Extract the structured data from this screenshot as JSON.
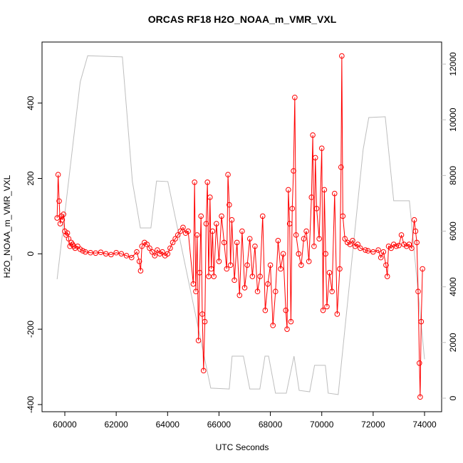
{
  "chart_data": {
    "type": "line",
    "title": "ORCAS RF18 H2O_NOAA_m_VMR_VXL",
    "x_label": "UTC Seconds",
    "y_label": "H2O_NOAA_m_VMR_VXL",
    "xlim": [
      59113,
      74665
    ],
    "ylim": [
      -419,
      562
    ],
    "y2lim": [
      -486,
      12793
    ],
    "xticks": [
      60000,
      62000,
      64000,
      66000,
      68000,
      70000,
      72000,
      74000
    ],
    "yticks": [
      -400,
      -200,
      0,
      200,
      400
    ],
    "y2ticks": [
      0,
      2000,
      4000,
      6000,
      8000,
      10000,
      12000
    ],
    "series": [
      {
        "color": "#ff0000",
        "markers": true,
        "x": [
          59700,
          59740,
          59780,
          59820,
          59860,
          59900,
          59950,
          60000,
          60050,
          60100,
          60150,
          60200,
          60250,
          60300,
          60350,
          60400,
          60500,
          60600,
          60700,
          60800,
          61000,
          61200,
          61400,
          61600,
          61800,
          62000,
          62200,
          62400,
          62600,
          62800,
          62900,
          62950,
          63000,
          63100,
          63200,
          63300,
          63400,
          63500,
          63600,
          63700,
          63800,
          63900,
          64000,
          64100,
          64200,
          64300,
          64400,
          64500,
          64600,
          64700,
          64800,
          65000,
          65050,
          65100,
          65150,
          65200,
          65250,
          65300,
          65350,
          65400,
          65450,
          65500,
          65550,
          65600,
          65650,
          65700,
          65750,
          65800,
          65900,
          66000,
          66100,
          66200,
          66300,
          66350,
          66400,
          66450,
          66500,
          66600,
          66700,
          66800,
          66900,
          67000,
          67100,
          67200,
          67300,
          67400,
          67500,
          67600,
          67700,
          67800,
          67900,
          68000,
          68100,
          68200,
          68300,
          68400,
          68500,
          68600,
          68650,
          68700,
          68750,
          68800,
          68850,
          68900,
          68950,
          69000,
          69100,
          69200,
          69300,
          69400,
          69500,
          69600,
          69650,
          69700,
          69750,
          69800,
          69900,
          70000,
          70050,
          70100,
          70150,
          70200,
          70300,
          70400,
          70500,
          70600,
          70700,
          70750,
          70780,
          70820,
          70900,
          71000,
          71100,
          71200,
          71300,
          71400,
          71500,
          71700,
          71800,
          72000,
          72200,
          72300,
          72400,
          72500,
          72550,
          72600,
          72700,
          72800,
          72900,
          73000,
          73100,
          73200,
          73300,
          73400,
          73500,
          73600,
          73650,
          73700,
          73750,
          73800,
          73830,
          73870,
          73920
        ],
        "values": [
          95,
          210,
          140,
          80,
          100,
          90,
          105,
          60,
          50,
          55,
          40,
          20,
          30,
          25,
          20,
          15,
          20,
          12,
          8,
          5,
          3,
          2,
          4,
          0,
          -2,
          3,
          0,
          -5,
          -10,
          5,
          -20,
          -45,
          20,
          30,
          25,
          15,
          5,
          -5,
          10,
          0,
          5,
          -5,
          0,
          15,
          30,
          40,
          50,
          60,
          70,
          55,
          60,
          -80,
          190,
          -100,
          50,
          -230,
          -50,
          100,
          -160,
          -310,
          -180,
          80,
          190,
          -60,
          150,
          -40,
          60,
          -60,
          80,
          -20,
          100,
          30,
          -40,
          210,
          130,
          -30,
          90,
          -70,
          30,
          -110,
          60,
          -90,
          -30,
          40,
          -60,
          20,
          -100,
          -60,
          100,
          -150,
          -80,
          -30,
          -190,
          -100,
          35,
          -40,
          0,
          -150,
          -200,
          170,
          80,
          -180,
          120,
          220,
          415,
          50,
          0,
          -30,
          40,
          60,
          -20,
          150,
          315,
          20,
          255,
          120,
          40,
          280,
          -150,
          170,
          0,
          -140,
          -50,
          -100,
          160,
          -160,
          -40,
          230,
          525,
          100,
          40,
          30,
          25,
          35,
          20,
          25,
          15,
          10,
          8,
          5,
          10,
          -10,
          5,
          -30,
          -60,
          20,
          15,
          25,
          20,
          22,
          50,
          25,
          20,
          25,
          15,
          90,
          60,
          30,
          -100,
          -290,
          -380,
          -180,
          -40
        ]
      },
      {
        "color": "#bebebe",
        "axis": "y2",
        "markers": false,
        "x": [
          59700,
          60600,
          60890,
          62240,
          62630,
          62940,
          63350,
          63570,
          64010,
          65680,
          66400,
          66510,
          66950,
          67200,
          67590,
          67790,
          67930,
          68200,
          68620,
          68920,
          69120,
          69530,
          69720,
          70140,
          70250,
          70640,
          71610,
          71830,
          72470,
          72800,
          73410,
          74000
        ],
        "values": [
          4273,
          11360,
          12300,
          12260,
          7780,
          6115,
          6115,
          7800,
          7780,
          360,
          330,
          1510,
          1510,
          330,
          330,
          1510,
          1510,
          180,
          180,
          1510,
          280,
          230,
          1180,
          1180,
          180,
          130,
          8930,
          10080,
          10110,
          7090,
          7090,
          1400
        ]
      }
    ]
  }
}
